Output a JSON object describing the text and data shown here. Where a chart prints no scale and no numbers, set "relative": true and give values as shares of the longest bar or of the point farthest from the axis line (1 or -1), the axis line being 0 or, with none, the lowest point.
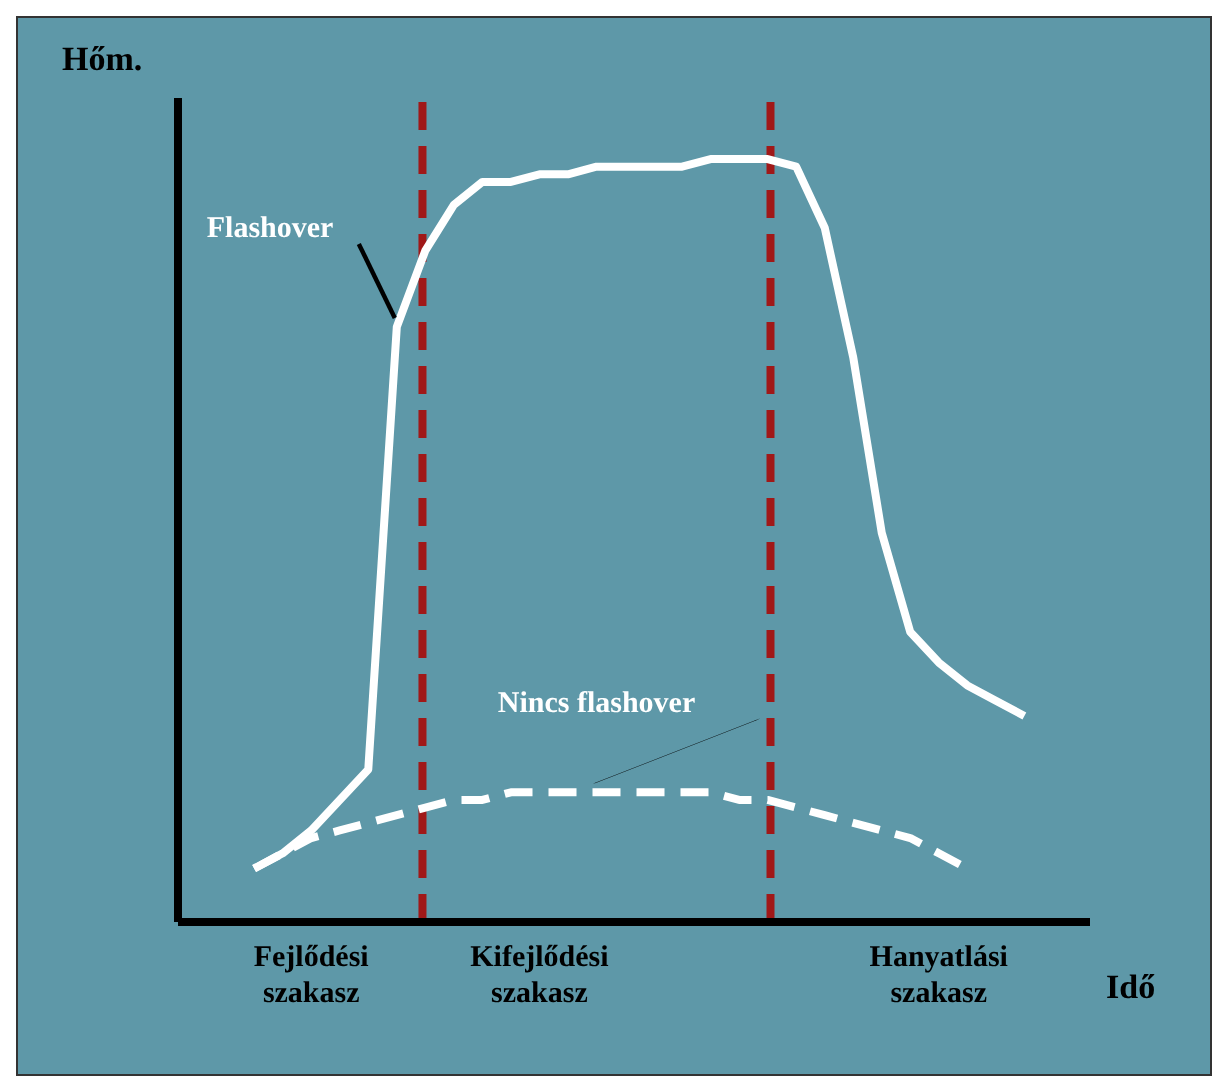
{
  "chart_data": {
    "type": "line",
    "relative": true,
    "ylabel": "Hőm.",
    "xlabel": "Idő",
    "marker": "none",
    "categories": [
      null,
      null,
      null,
      null,
      "Fejlődési szakasz",
      null,
      null,
      null,
      null,
      null,
      null,
      null,
      "Kifejlődési szakasz",
      null,
      null,
      null,
      null,
      null,
      null,
      null,
      null,
      null,
      null,
      null,
      null,
      null,
      "Hanyatlási szakasz",
      null,
      null,
      null,
      null
    ],
    "series": [
      {
        "name": "Flashover",
        "color": "#ffffff",
        "line_style": "solid",
        "values": [
          null,
          null,
          0.07,
          0.09,
          0.12,
          0.16,
          0.2,
          0.78,
          0.88,
          0.94,
          0.97,
          0.97,
          0.98,
          0.98,
          0.99,
          0.99,
          0.99,
          0.99,
          1,
          1,
          1,
          0.99,
          0.91,
          0.74,
          0.51,
          0.38,
          0.34,
          0.31,
          0.29,
          0.27,
          null
        ]
      },
      {
        "name": "Nincs flashover",
        "color": "#ffffff",
        "line_style": "dashed",
        "values": [
          null,
          null,
          0.07,
          0.09,
          0.11,
          0.12,
          0.13,
          0.14,
          0.15,
          0.16,
          0.16,
          0.17,
          0.17,
          0.17,
          0.17,
          0.17,
          0.17,
          0.17,
          0.17,
          0.16,
          0.16,
          0.15,
          0.14,
          0.13,
          0.12,
          0.11,
          0.09,
          0.07,
          null,
          null,
          null
        ]
      }
    ]
  }
}
